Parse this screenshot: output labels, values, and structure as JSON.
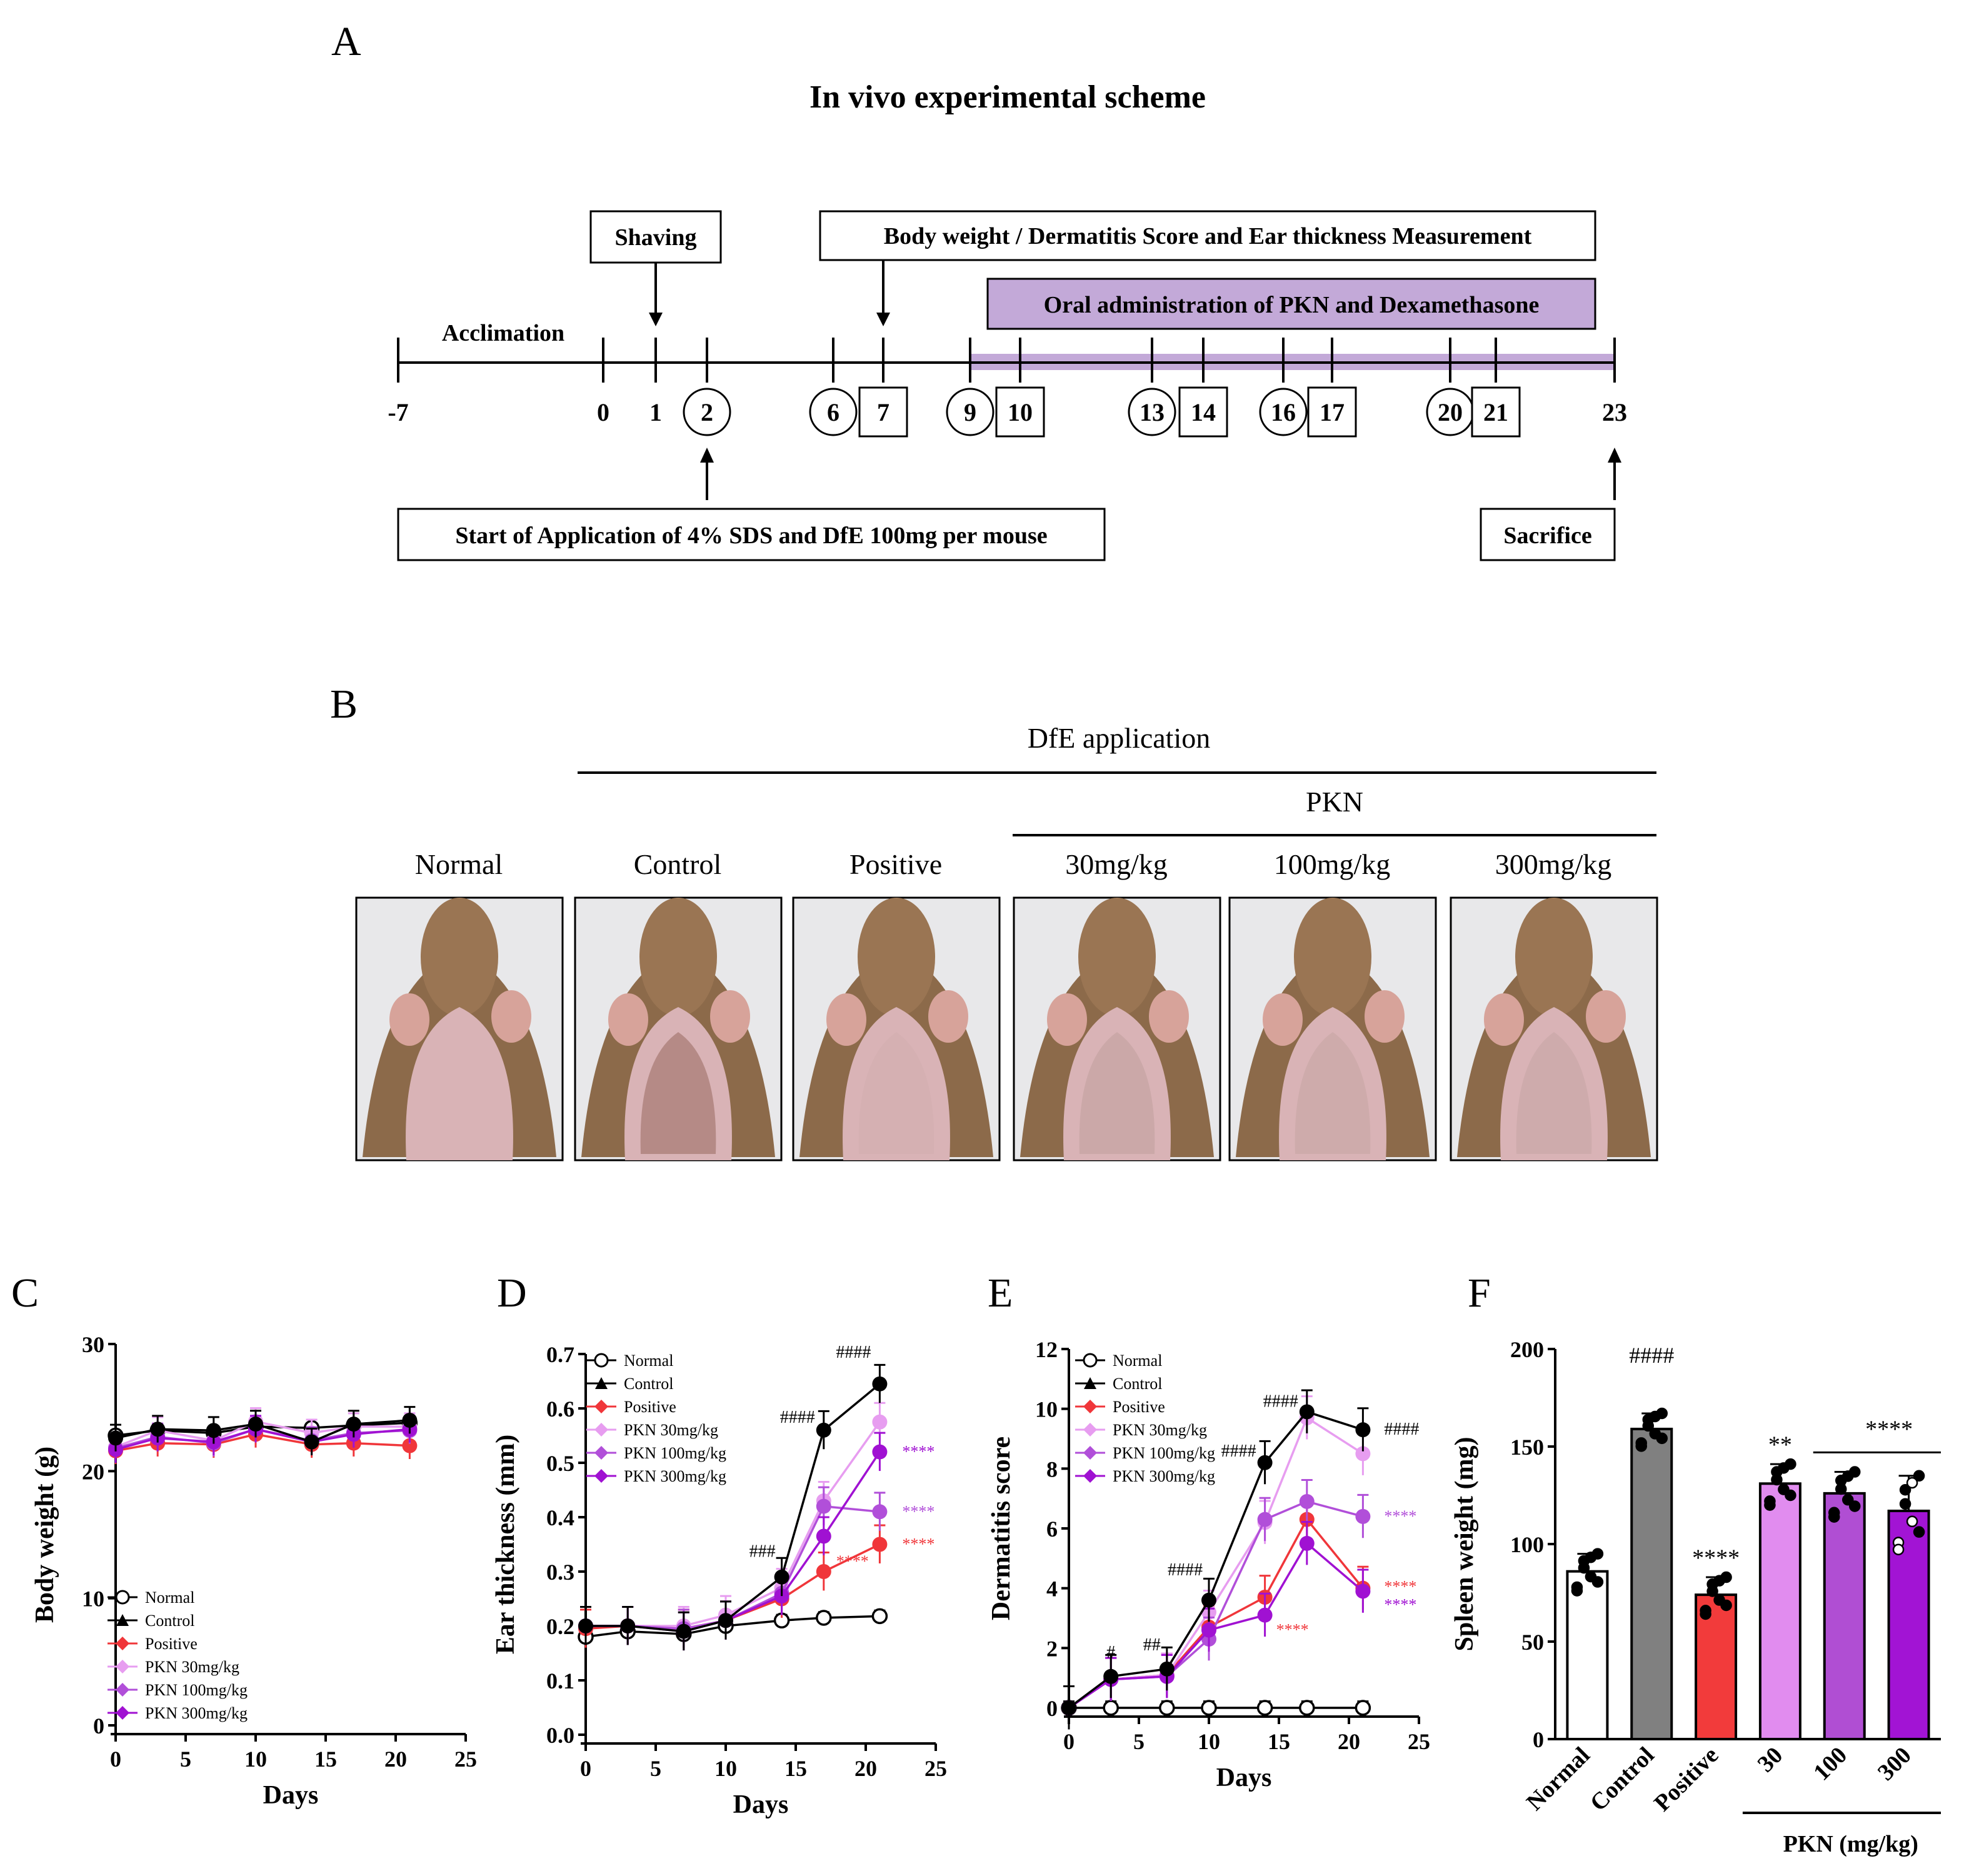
{
  "panel_labels": {
    "a": "A",
    "b": "B",
    "c": "C",
    "d": "D",
    "e": "E",
    "f": "F"
  },
  "scheme": {
    "title": "In vivo experimental scheme",
    "box_shaving": "Shaving",
    "box_measure": "Body weight / Dermatitis Score and Ear thickness Measurement",
    "box_oral": "Oral administration of PKN and Dexamethasone",
    "label_acclimation": "Acclimation",
    "box_start": "Start of Application of 4% SDS and DfE 100mg per mouse",
    "box_sacrifice": "Sacrifice",
    "days": [
      "-7",
      "0",
      "1",
      "2",
      "6",
      "7",
      "9",
      "10",
      "13",
      "14",
      "16",
      "17",
      "20",
      "21",
      "23"
    ],
    "circled_days": [
      "2",
      "6",
      "9",
      "13",
      "16",
      "20"
    ],
    "boxed_days": [
      "7",
      "10",
      "14",
      "17",
      "21"
    ],
    "oral_color": "#c3a9d8"
  },
  "photos": {
    "group_header": "DfE application",
    "pkn_header": "PKN",
    "labels": [
      "Normal",
      "Control",
      "Positive",
      "30mg/kg",
      "100mg/kg",
      "300mg/kg"
    ]
  },
  "legend_labels": [
    "Normal",
    "Control",
    "Positive",
    "PKN 30mg/kg",
    "PKN 100mg/kg",
    "PKN 300mg/kg"
  ],
  "series_colors": {
    "Normal": "#000000",
    "Control": "#000000",
    "Positive": "#f0363a",
    "PKN 30mg/kg": "#e79df0",
    "PKN 100mg/kg": "#b14fd9",
    "PKN 300mg/kg": "#a011d2"
  },
  "chart_data": [
    {
      "id": "C",
      "type": "line",
      "xlabel": "Days",
      "ylabel": "Body weight (g)",
      "xlim": [
        0,
        25
      ],
      "ylim": [
        0,
        30
      ],
      "xticks": [
        "0",
        "5",
        "10",
        "15",
        "20",
        "25"
      ],
      "yticks": [
        "0",
        "10",
        "20",
        "30"
      ],
      "x": [
        0,
        3,
        7,
        10,
        14,
        17,
        21
      ],
      "series": [
        {
          "name": "Normal",
          "values": [
            22.8,
            23.2,
            23.0,
            23.5,
            23.4,
            23.6,
            23.8
          ]
        },
        {
          "name": "Control",
          "values": [
            22.6,
            23.3,
            23.2,
            23.7,
            22.3,
            23.7,
            24.0
          ]
        },
        {
          "name": "Positive",
          "values": [
            21.6,
            22.2,
            22.1,
            22.9,
            22.1,
            22.2,
            22.0
          ]
        },
        {
          "name": "PKN 30mg/kg",
          "values": [
            21.9,
            23.2,
            22.4,
            23.9,
            23.0,
            23.5,
            23.5
          ]
        },
        {
          "name": "PKN 100mg/kg",
          "values": [
            21.8,
            22.7,
            22.2,
            23.3,
            22.4,
            23.0,
            23.2
          ]
        },
        {
          "name": "PKN 300mg/kg",
          "values": [
            21.7,
            22.6,
            22.3,
            23.3,
            22.3,
            22.9,
            23.3
          ]
        }
      ]
    },
    {
      "id": "D",
      "type": "line",
      "xlabel": "Days",
      "ylabel": "Ear thickness (mm)",
      "xlim": [
        0,
        25
      ],
      "ylim": [
        0,
        0.7
      ],
      "xticks": [
        "0",
        "5",
        "10",
        "15",
        "20",
        "25"
      ],
      "yticks": [
        "0.0",
        "0.1",
        "0.2",
        "0.3",
        "0.4",
        "0.5",
        "0.6",
        "0.7"
      ],
      "x": [
        0,
        3,
        7,
        10,
        14,
        17,
        21
      ],
      "series": [
        {
          "name": "Normal",
          "values": [
            0.18,
            0.19,
            0.185,
            0.2,
            0.21,
            0.215,
            0.218
          ]
        },
        {
          "name": "Control",
          "values": [
            0.2,
            0.2,
            0.19,
            0.21,
            0.29,
            0.56,
            0.645
          ]
        },
        {
          "name": "Positive",
          "values": [
            0.195,
            0.2,
            0.195,
            0.21,
            0.25,
            0.3,
            0.35
          ]
        },
        {
          "name": "PKN 30mg/kg",
          "values": [
            0.2,
            0.2,
            0.2,
            0.22,
            0.27,
            0.43,
            0.575
          ]
        },
        {
          "name": "PKN 100mg/kg",
          "values": [
            0.2,
            0.2,
            0.195,
            0.21,
            0.26,
            0.42,
            0.41
          ]
        },
        {
          "name": "PKN 300mg/kg",
          "values": [
            0.2,
            0.2,
            0.19,
            0.21,
            0.255,
            0.365,
            0.52
          ]
        }
      ],
      "annotations": [
        "###",
        "####",
        "####",
        "****",
        "****",
        "****",
        "****"
      ]
    },
    {
      "id": "E",
      "type": "line",
      "xlabel": "Days",
      "ylabel": "Dermatitis score",
      "xlim": [
        0,
        25
      ],
      "ylim": [
        0,
        12
      ],
      "xticks": [
        "0",
        "5",
        "10",
        "15",
        "20",
        "25"
      ],
      "yticks": [
        "0",
        "2",
        "4",
        "6",
        "8",
        "10",
        "12"
      ],
      "x": [
        0,
        3,
        7,
        10,
        14,
        17,
        21
      ],
      "series": [
        {
          "name": "Normal",
          "values": [
            0,
            0,
            0,
            0,
            0,
            0,
            0
          ]
        },
        {
          "name": "Control",
          "values": [
            0,
            1.05,
            1.3,
            3.6,
            8.2,
            9.9,
            9.3
          ]
        },
        {
          "name": "Positive",
          "values": [
            0,
            0.95,
            1.1,
            2.7,
            3.7,
            6.3,
            4.0
          ]
        },
        {
          "name": "PKN 30mg/kg",
          "values": [
            0,
            0.95,
            1.1,
            3.2,
            6.2,
            9.7,
            8.5
          ]
        },
        {
          "name": "PKN 100mg/kg",
          "values": [
            0,
            0.95,
            1.05,
            2.3,
            6.3,
            6.9,
            6.4
          ]
        },
        {
          "name": "PKN 300mg/kg",
          "values": [
            0,
            0.95,
            1.05,
            2.6,
            3.1,
            5.5,
            3.9
          ]
        }
      ],
      "annotations": [
        "#",
        "##",
        "####",
        "####",
        "####",
        "####",
        "****",
        "****",
        "****",
        "****"
      ]
    },
    {
      "id": "F",
      "type": "bar",
      "ylabel": "Spleen weight (mg)",
      "ylim": [
        0,
        200
      ],
      "yticks": [
        "0",
        "50",
        "100",
        "150",
        "200"
      ],
      "categories": [
        "Normal",
        "Control",
        "Positive",
        "30",
        "100",
        "300"
      ],
      "values": [
        86,
        159,
        74,
        131,
        126,
        117
      ],
      "errors": [
        9,
        8,
        9,
        10,
        11,
        18
      ],
      "bar_colors": [
        "#ffffff",
        "#808080",
        "#f23b3b",
        "#e18cef",
        "#b04ed3",
        "#a214d4"
      ],
      "group_label": "PKN (mg/kg)",
      "annotations": [
        "####",
        "****",
        "**",
        "****"
      ]
    }
  ]
}
